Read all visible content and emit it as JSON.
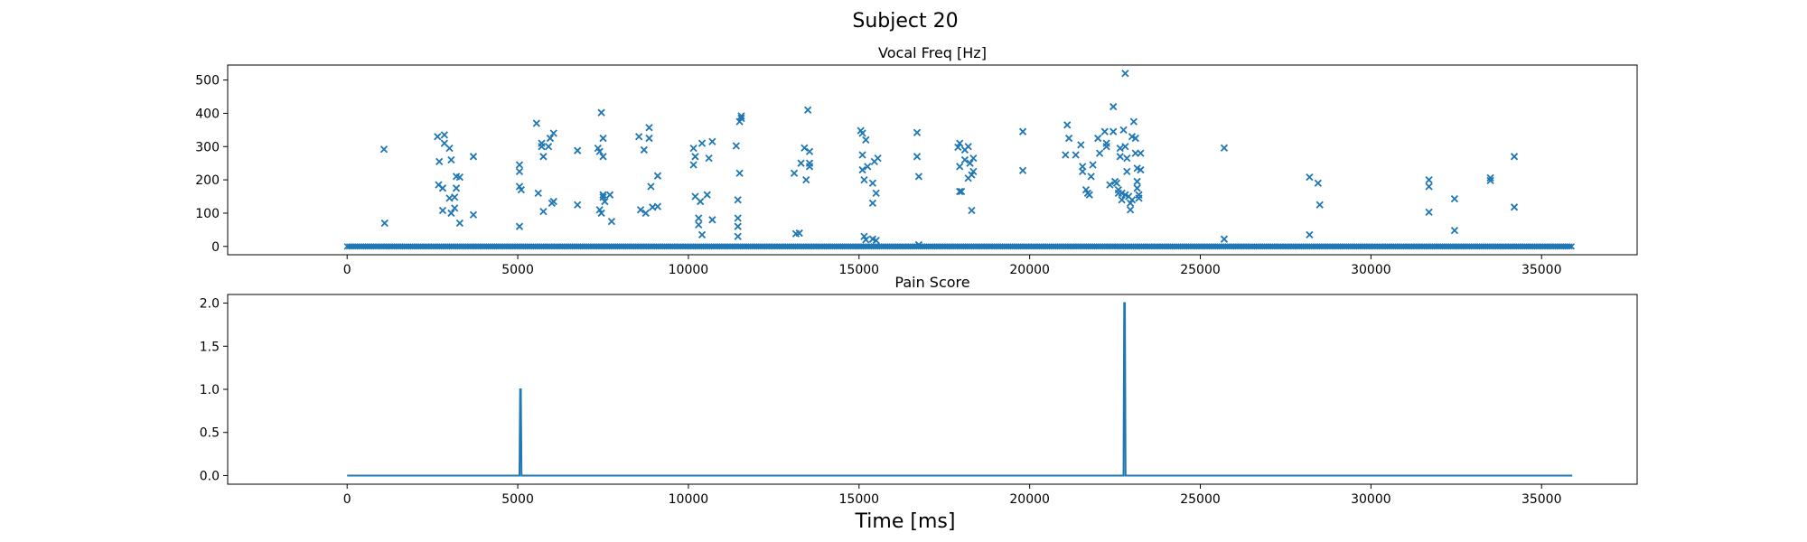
{
  "figure": {
    "suptitle": "Subject 20",
    "xlabel": "Time [ms]"
  },
  "colors": {
    "series": "#1f77b4",
    "axes": "#000000"
  },
  "chart_data": [
    {
      "type": "scatter",
      "title": "Vocal Freq [Hz]",
      "marker": "x",
      "xlim": [
        -3500,
        37800
      ],
      "ylim": [
        -25,
        545
      ],
      "xticks": [
        0,
        5000,
        10000,
        15000,
        20000,
        25000,
        30000,
        35000
      ],
      "yticks": [
        0,
        100,
        200,
        300,
        400,
        500
      ],
      "baseline": {
        "y": 0,
        "x_start": 0,
        "x_end": 35900,
        "step": 60
      },
      "points": [
        [
          1080,
          292
        ],
        [
          1100,
          70
        ],
        [
          2650,
          330
        ],
        [
          2700,
          255
        ],
        [
          2680,
          185
        ],
        [
          2800,
          175
        ],
        [
          2850,
          335
        ],
        [
          2850,
          310
        ],
        [
          2800,
          108
        ],
        [
          3000,
          295
        ],
        [
          3050,
          260
        ],
        [
          3000,
          145
        ],
        [
          3050,
          100
        ],
        [
          3150,
          115
        ],
        [
          3200,
          175
        ],
        [
          3150,
          148
        ],
        [
          3200,
          210
        ],
        [
          3300,
          208
        ],
        [
          3300,
          70
        ],
        [
          3700,
          270
        ],
        [
          3700,
          95
        ],
        [
          5050,
          245
        ],
        [
          5050,
          225
        ],
        [
          5050,
          180
        ],
        [
          5100,
          170
        ],
        [
          5050,
          60
        ],
        [
          5550,
          370
        ],
        [
          5600,
          160
        ],
        [
          5700,
          310
        ],
        [
          5700,
          300
        ],
        [
          5750,
          270
        ],
        [
          5750,
          105
        ],
        [
          5900,
          300
        ],
        [
          5950,
          325
        ],
        [
          6000,
          130
        ],
        [
          6050,
          340
        ],
        [
          6050,
          135
        ],
        [
          6750,
          288
        ],
        [
          6750,
          125
        ],
        [
          7350,
          295
        ],
        [
          7400,
          285
        ],
        [
          7400,
          110
        ],
        [
          7450,
          100
        ],
        [
          7450,
          402
        ],
        [
          7500,
          325
        ],
        [
          7500,
          270
        ],
        [
          7500,
          155
        ],
        [
          7500,
          148
        ],
        [
          7550,
          135
        ],
        [
          7700,
          155
        ],
        [
          7750,
          75
        ],
        [
          8550,
          330
        ],
        [
          8600,
          110
        ],
        [
          8700,
          290
        ],
        [
          8750,
          100
        ],
        [
          8850,
          357
        ],
        [
          8850,
          325
        ],
        [
          8900,
          180
        ],
        [
          8950,
          118
        ],
        [
          9100,
          212
        ],
        [
          9100,
          120
        ],
        [
          10150,
          295
        ],
        [
          10150,
          245
        ],
        [
          10200,
          270
        ],
        [
          10200,
          150
        ],
        [
          10300,
          85
        ],
        [
          10300,
          65
        ],
        [
          10350,
          135
        ],
        [
          10400,
          310
        ],
        [
          10400,
          35
        ],
        [
          10550,
          155
        ],
        [
          10600,
          265
        ],
        [
          10700,
          315
        ],
        [
          10700,
          80
        ],
        [
          11400,
          302
        ],
        [
          11450,
          140
        ],
        [
          11500,
          220
        ],
        [
          11450,
          85
        ],
        [
          11450,
          60
        ],
        [
          11450,
          30
        ],
        [
          11500,
          375
        ],
        [
          11550,
          385
        ],
        [
          11550,
          392
        ],
        [
          13100,
          220
        ],
        [
          13150,
          38
        ],
        [
          13250,
          40
        ],
        [
          13300,
          250
        ],
        [
          13400,
          296
        ],
        [
          13450,
          200
        ],
        [
          13500,
          410
        ],
        [
          13550,
          285
        ],
        [
          13550,
          250
        ],
        [
          13550,
          240
        ],
        [
          15050,
          348
        ],
        [
          15100,
          340
        ],
        [
          15100,
          275
        ],
        [
          15100,
          230
        ],
        [
          15150,
          200
        ],
        [
          15200,
          320
        ],
        [
          15150,
          30
        ],
        [
          15200,
          20
        ],
        [
          15250,
          240
        ],
        [
          15400,
          190
        ],
        [
          15400,
          130
        ],
        [
          15450,
          255
        ],
        [
          15500,
          160
        ],
        [
          15400,
          22
        ],
        [
          15500,
          18
        ],
        [
          15550,
          265
        ],
        [
          16700,
          342
        ],
        [
          16700,
          270
        ],
        [
          16750,
          210
        ],
        [
          16750,
          5
        ],
        [
          17900,
          298
        ],
        [
          17950,
          310
        ],
        [
          17950,
          240
        ],
        [
          17950,
          165
        ],
        [
          18000,
          165
        ],
        [
          18100,
          290
        ],
        [
          18100,
          260
        ],
        [
          18200,
          205
        ],
        [
          18250,
          250
        ],
        [
          18300,
          215
        ],
        [
          18350,
          225
        ],
        [
          18300,
          108
        ],
        [
          18350,
          265
        ],
        [
          18200,
          300
        ],
        [
          19800,
          345
        ],
        [
          19800,
          228
        ],
        [
          21050,
          275
        ],
        [
          21100,
          365
        ],
        [
          21150,
          325
        ],
        [
          21350,
          275
        ],
        [
          21500,
          305
        ],
        [
          21550,
          240
        ],
        [
          21550,
          225
        ],
        [
          21650,
          170
        ],
        [
          21700,
          160
        ],
        [
          21750,
          155
        ],
        [
          21800,
          210
        ],
        [
          21850,
          245
        ],
        [
          22000,
          325
        ],
        [
          22050,
          280
        ],
        [
          22200,
          345
        ],
        [
          22250,
          310
        ],
        [
          22250,
          300
        ],
        [
          22350,
          185
        ],
        [
          22450,
          420
        ],
        [
          22450,
          345
        ],
        [
          22500,
          195
        ],
        [
          22550,
          190
        ],
        [
          22600,
          170
        ],
        [
          22650,
          295
        ],
        [
          22650,
          270
        ],
        [
          22700,
          160
        ],
        [
          22700,
          140
        ],
        [
          22750,
          350
        ],
        [
          22800,
          520
        ],
        [
          22800,
          300
        ],
        [
          22850,
          265
        ],
        [
          22850,
          225
        ],
        [
          22900,
          150
        ],
        [
          22950,
          130
        ],
        [
          22950,
          110
        ],
        [
          23000,
          330
        ],
        [
          23050,
          375
        ],
        [
          23100,
          325
        ],
        [
          23100,
          280
        ],
        [
          23150,
          235
        ],
        [
          23150,
          195
        ],
        [
          23150,
          175
        ],
        [
          23200,
          155
        ],
        [
          23200,
          145
        ],
        [
          23250,
          280
        ],
        [
          23250,
          230
        ],
        [
          22600,
          160
        ],
        [
          22800,
          155
        ],
        [
          23000,
          140
        ],
        [
          25700,
          296
        ],
        [
          25700,
          22
        ],
        [
          28200,
          208
        ],
        [
          28200,
          35
        ],
        [
          28450,
          190
        ],
        [
          28500,
          125
        ],
        [
          31700,
          200
        ],
        [
          31700,
          180
        ],
        [
          31700,
          103
        ],
        [
          32450,
          143
        ],
        [
          32450,
          48
        ],
        [
          33500,
          206
        ],
        [
          33500,
          198
        ],
        [
          34200,
          270
        ],
        [
          34200,
          118
        ]
      ]
    },
    {
      "type": "line",
      "title": "Pain Score",
      "xlim": [
        -3500,
        37800
      ],
      "ylim": [
        -0.1,
        2.1
      ],
      "xticks": [
        0,
        5000,
        10000,
        15000,
        20000,
        25000,
        30000,
        35000
      ],
      "yticks": [
        0.0,
        0.5,
        1.0,
        1.5,
        2.0
      ],
      "ytick_labels": [
        "0.0",
        "0.5",
        "1.0",
        "1.5",
        "2.0"
      ],
      "x": [
        0,
        5050,
        5070,
        5090,
        5110,
        22750,
        22770,
        22790,
        22810,
        35900
      ],
      "y": [
        0,
        0,
        1,
        1,
        0,
        0,
        2,
        2,
        0,
        0
      ]
    }
  ]
}
